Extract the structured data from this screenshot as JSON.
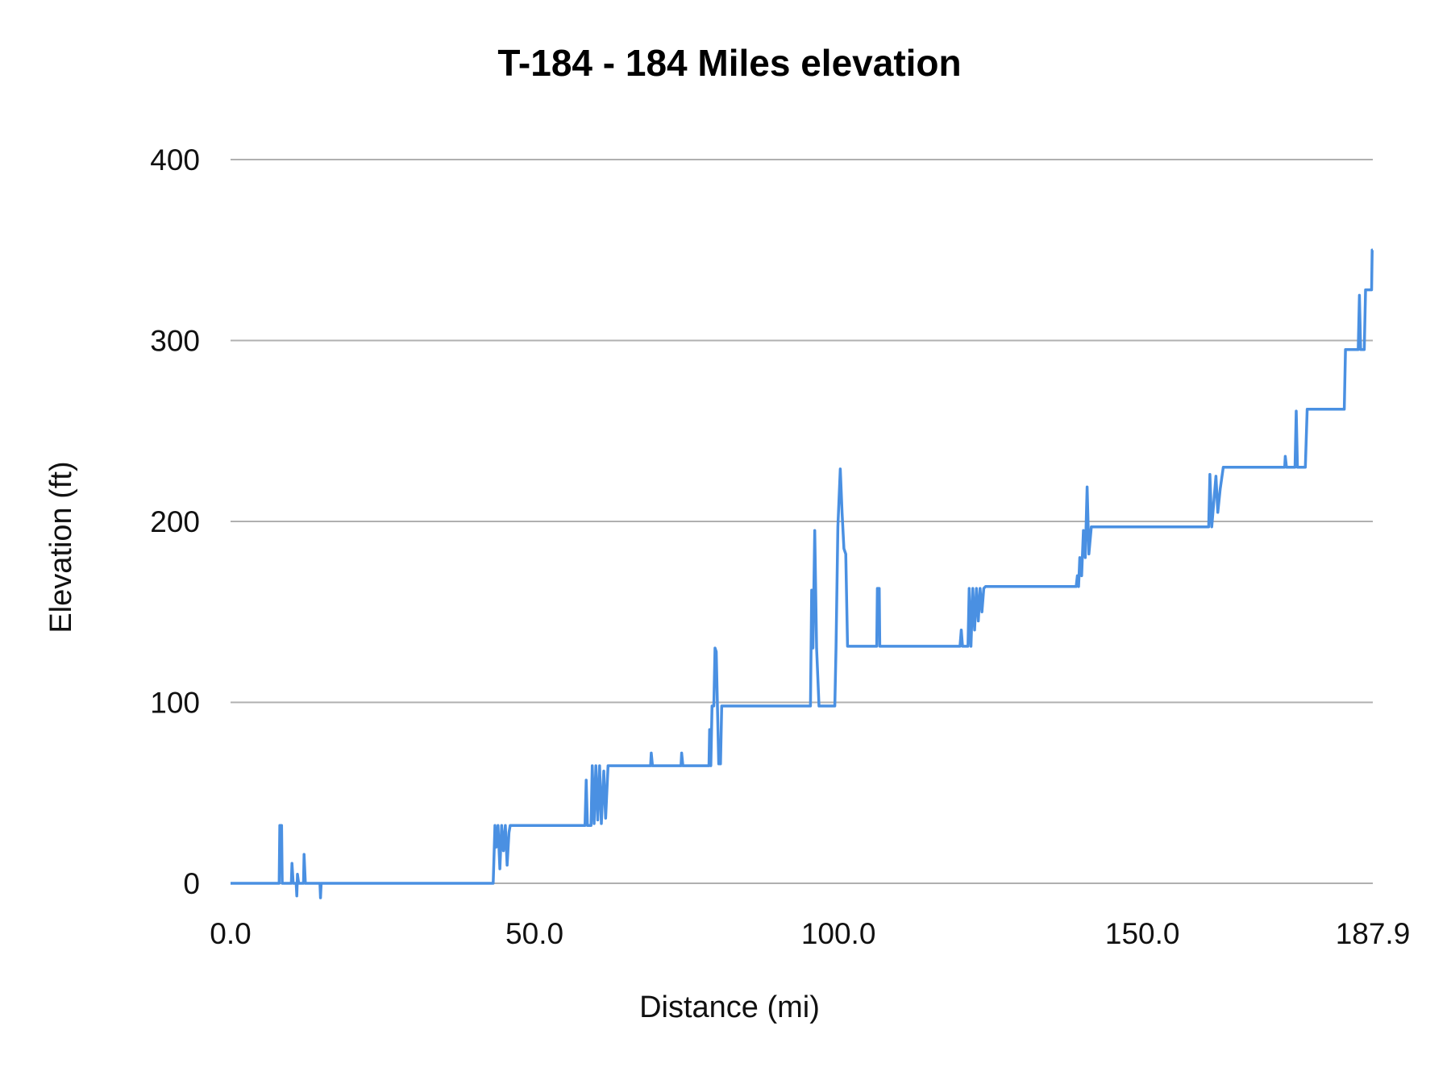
{
  "chart_data": {
    "type": "line",
    "title": "T-184 - 184 Miles elevation",
    "xlabel": "Distance (mi)",
    "ylabel": "Elevation (ft)",
    "xlim": [
      0,
      187.9
    ],
    "ylim": [
      0,
      400
    ],
    "x_ticks": [
      "0.0",
      "50.0",
      "100.0",
      "150.0",
      "187.9"
    ],
    "x_tick_values": [
      0,
      50,
      100,
      150,
      187.9
    ],
    "y_ticks": [
      "0",
      "100",
      "200",
      "300",
      "400"
    ],
    "y_tick_values": [
      0,
      100,
      200,
      300,
      400
    ],
    "grid": "horizontal",
    "legend": "none",
    "line_color": "#4a90e2",
    "grid_color": "#b0b0b0",
    "points": [
      [
        0,
        0
      ],
      [
        8.0,
        0
      ],
      [
        8.1,
        32
      ],
      [
        8.4,
        32
      ],
      [
        8.5,
        0
      ],
      [
        10.0,
        0
      ],
      [
        10.1,
        11
      ],
      [
        10.3,
        0
      ],
      [
        10.8,
        0
      ],
      [
        10.9,
        -7
      ],
      [
        11.0,
        5
      ],
      [
        11.2,
        0
      ],
      [
        12.0,
        0
      ],
      [
        12.1,
        16
      ],
      [
        12.3,
        0
      ],
      [
        14.7,
        0
      ],
      [
        14.8,
        -8
      ],
      [
        14.9,
        0
      ],
      [
        43.2,
        0
      ],
      [
        43.3,
        10
      ],
      [
        43.5,
        32
      ],
      [
        43.7,
        20
      ],
      [
        44.0,
        32
      ],
      [
        44.3,
        8
      ],
      [
        44.6,
        32
      ],
      [
        44.9,
        18
      ],
      [
        45.2,
        32
      ],
      [
        45.5,
        10
      ],
      [
        45.8,
        28
      ],
      [
        46.0,
        32
      ],
      [
        58.3,
        32
      ],
      [
        58.5,
        57
      ],
      [
        58.7,
        32
      ],
      [
        59.3,
        32
      ],
      [
        59.5,
        65
      ],
      [
        59.8,
        33
      ],
      [
        60.1,
        65
      ],
      [
        60.4,
        35
      ],
      [
        60.7,
        65
      ],
      [
        61.0,
        33
      ],
      [
        61.4,
        62
      ],
      [
        61.7,
        36
      ],
      [
        62.1,
        65
      ],
      [
        62.4,
        65
      ],
      [
        69.1,
        65
      ],
      [
        69.2,
        72
      ],
      [
        69.4,
        65
      ],
      [
        74.1,
        65
      ],
      [
        74.2,
        72
      ],
      [
        74.4,
        65
      ],
      [
        78.7,
        65
      ],
      [
        78.8,
        85
      ],
      [
        79.0,
        65
      ],
      [
        79.2,
        98
      ],
      [
        79.5,
        98
      ],
      [
        79.7,
        130
      ],
      [
        79.9,
        128
      ],
      [
        80.3,
        66
      ],
      [
        80.6,
        66
      ],
      [
        80.8,
        98
      ],
      [
        81.1,
        98
      ],
      [
        95.4,
        98
      ],
      [
        95.6,
        162
      ],
      [
        95.8,
        130
      ],
      [
        96.1,
        195
      ],
      [
        96.4,
        130
      ],
      [
        96.8,
        98
      ],
      [
        99.4,
        98
      ],
      [
        99.6,
        130
      ],
      [
        99.9,
        197
      ],
      [
        100.3,
        229
      ],
      [
        100.6,
        205
      ],
      [
        100.9,
        185
      ],
      [
        101.2,
        182
      ],
      [
        101.5,
        131
      ],
      [
        101.7,
        131
      ],
      [
        106.3,
        131
      ],
      [
        106.4,
        163
      ],
      [
        106.7,
        163
      ],
      [
        106.8,
        131
      ],
      [
        120.0,
        131
      ],
      [
        120.2,
        140
      ],
      [
        120.4,
        131
      ],
      [
        121.3,
        131
      ],
      [
        121.5,
        163
      ],
      [
        121.8,
        131
      ],
      [
        122.1,
        163
      ],
      [
        122.4,
        140
      ],
      [
        122.7,
        163
      ],
      [
        123.0,
        145
      ],
      [
        123.3,
        163
      ],
      [
        123.6,
        150
      ],
      [
        123.9,
        163
      ],
      [
        124.2,
        164
      ],
      [
        139.1,
        164
      ],
      [
        139.3,
        170
      ],
      [
        139.5,
        164
      ],
      [
        139.7,
        180
      ],
      [
        140.0,
        170
      ],
      [
        140.3,
        195
      ],
      [
        140.6,
        180
      ],
      [
        140.9,
        219
      ],
      [
        141.2,
        182
      ],
      [
        141.6,
        197
      ],
      [
        142.0,
        197
      ],
      [
        160.9,
        197
      ],
      [
        161.1,
        226
      ],
      [
        161.4,
        197
      ],
      [
        162.1,
        225
      ],
      [
        162.4,
        205
      ],
      [
        162.8,
        218
      ],
      [
        163.3,
        230
      ],
      [
        163.6,
        230
      ],
      [
        173.4,
        230
      ],
      [
        173.5,
        236
      ],
      [
        173.7,
        230
      ],
      [
        175.1,
        230
      ],
      [
        175.3,
        261
      ],
      [
        175.5,
        230
      ],
      [
        176.8,
        230
      ],
      [
        177.1,
        262
      ],
      [
        177.4,
        262
      ],
      [
        183.2,
        262
      ],
      [
        183.4,
        295
      ],
      [
        185.5,
        295
      ],
      [
        185.7,
        325
      ],
      [
        185.9,
        295
      ],
      [
        186.5,
        295
      ],
      [
        186.7,
        328
      ],
      [
        187.7,
        328
      ],
      [
        187.8,
        350
      ],
      [
        187.9,
        350
      ]
    ]
  }
}
